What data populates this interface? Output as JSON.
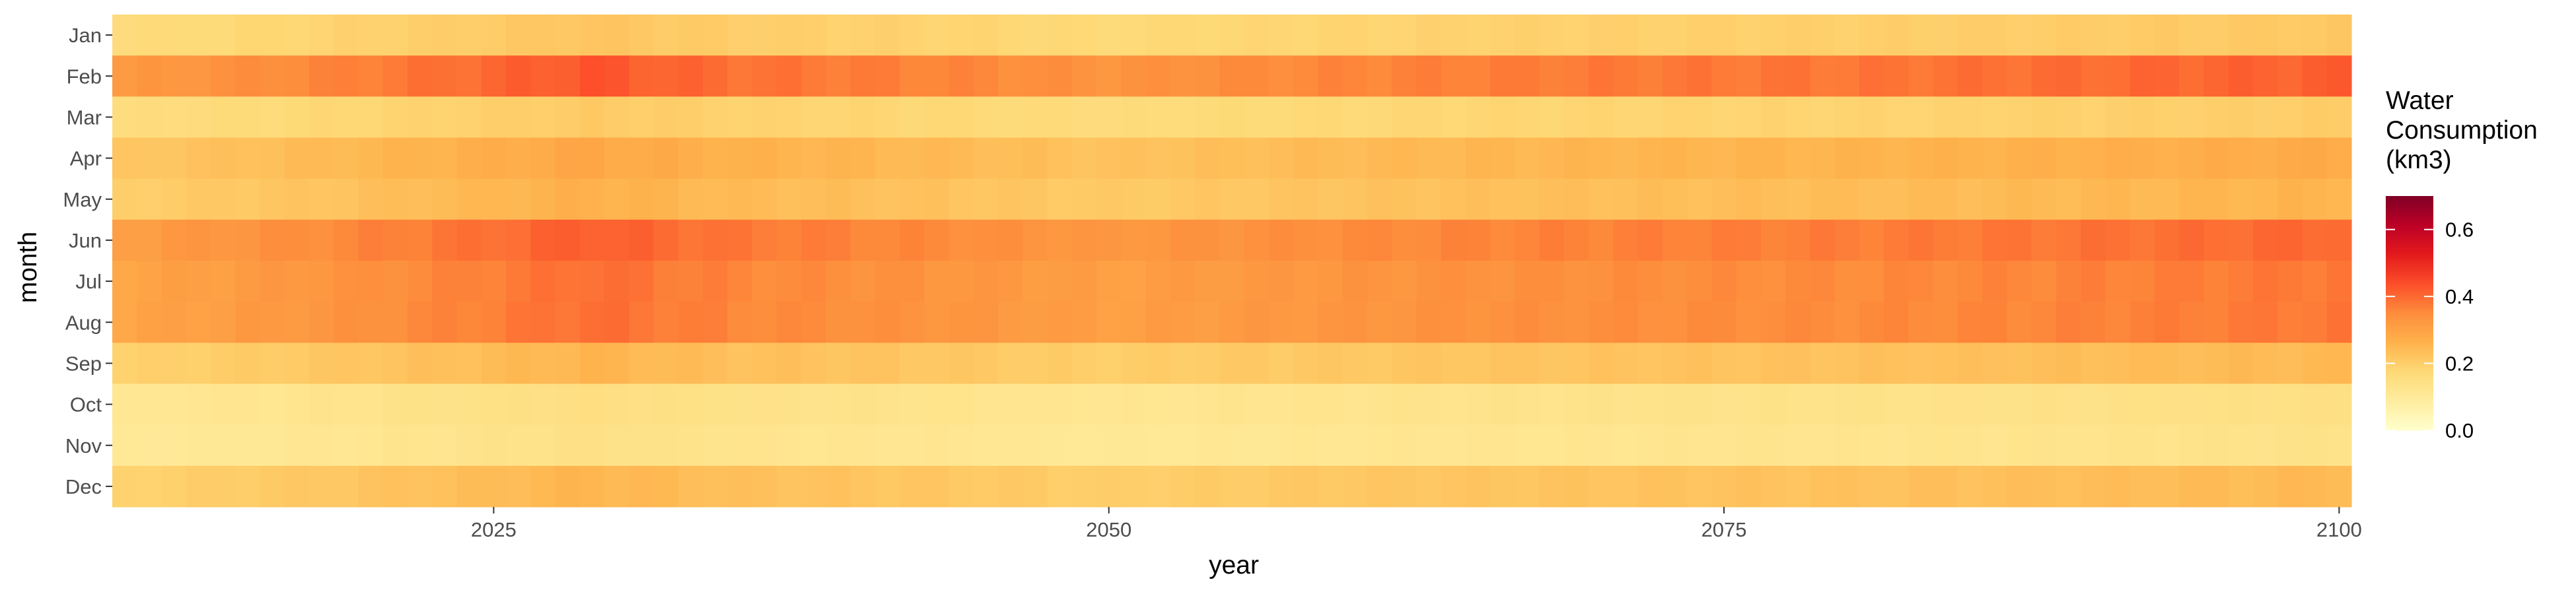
{
  "chart_data": {
    "type": "heatmap",
    "title": "",
    "xlabel": "year",
    "ylabel": "month",
    "xlim": [
      2010,
      2100
    ],
    "x_ticks": [
      2025,
      2050,
      2075,
      2100
    ],
    "x_tick_labels": [
      "2025",
      "2050",
      "2075",
      "2100"
    ],
    "months": [
      "Jan",
      "Feb",
      "Mar",
      "Apr",
      "May",
      "Jun",
      "Jul",
      "Aug",
      "Sep",
      "Oct",
      "Nov",
      "Dec"
    ],
    "year_start": 2010,
    "year_end": 2100,
    "legend": {
      "title_lines": [
        "Water",
        "Consumption",
        "(km3)"
      ],
      "range": [
        0,
        0.7
      ],
      "ticks": [
        0.0,
        0.2,
        0.4,
        0.6
      ],
      "tick_labels": [
        "0.0",
        "0.2",
        "0.4",
        "0.6"
      ],
      "placement": "right"
    },
    "colorscale": [
      "#ffffcc",
      "#ffeda0",
      "#fed976",
      "#feb24c",
      "#fd8d3c",
      "#fc4e2a",
      "#e31a1c",
      "#bd0026",
      "#800026"
    ],
    "grid": false,
    "base_values": [
      0.19,
      0.37,
      0.18,
      0.25,
      0.23,
      0.36,
      0.34,
      0.34,
      0.22,
      0.13,
      0.12,
      0.22
    ],
    "trend_anchors": {
      "years": [
        2010,
        2018,
        2024,
        2029,
        2035,
        2043,
        2050,
        2058,
        2065,
        2072,
        2080,
        2088,
        2094,
        2100
      ],
      "factors": [
        0.86,
        0.97,
        1.07,
        1.16,
        1.05,
        0.98,
        0.9,
        0.96,
        1.0,
        1.02,
        1.03,
        1.06,
        1.09,
        1.12
      ]
    }
  }
}
